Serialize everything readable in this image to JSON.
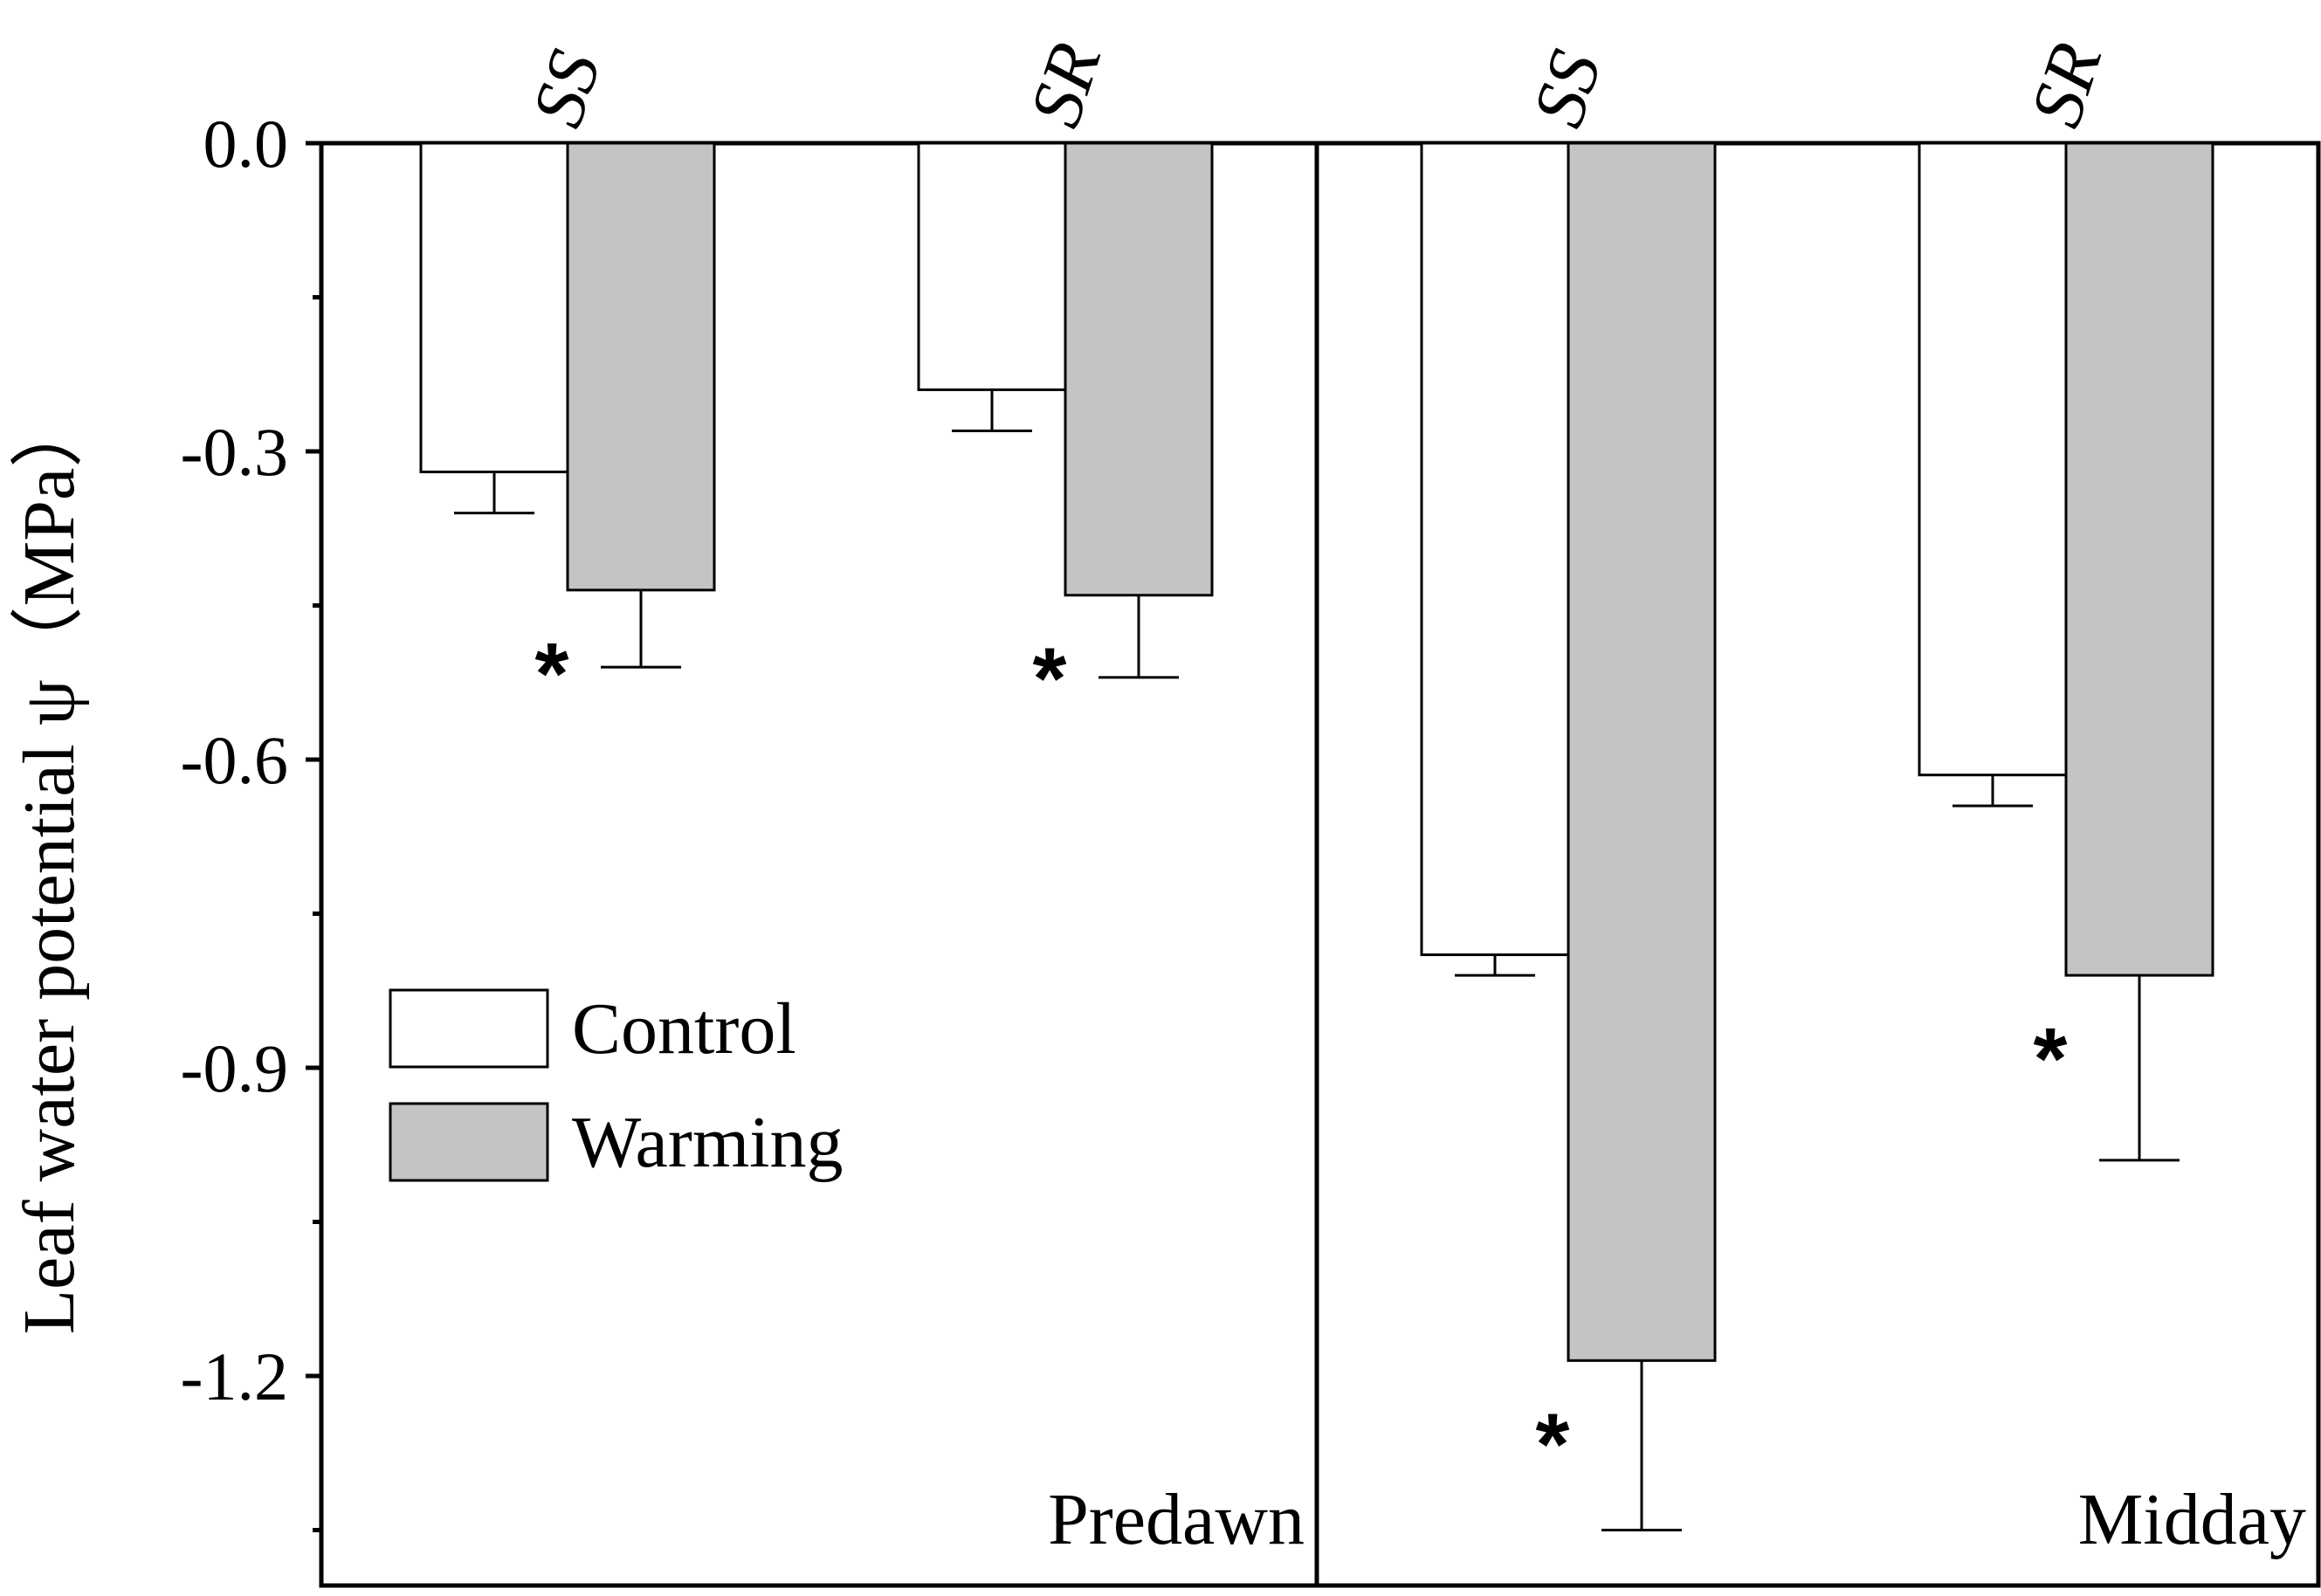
{
  "chart_data": {
    "type": "bar",
    "ylabel": "Leaf water potential ψ（MPa）",
    "ylim": [
      -1.36,
      0.0
    ],
    "yticks": [
      {
        "value": 0.0,
        "label": "0.0"
      },
      {
        "value": -0.3,
        "label": "-0.3"
      },
      {
        "value": -0.6,
        "label": "-0.6"
      },
      {
        "value": -0.9,
        "label": "-0.9"
      },
      {
        "value": -1.2,
        "label": "-1.2"
      }
    ],
    "yminor": [
      -0.15,
      -0.45,
      -0.75,
      -1.05,
      -1.35
    ],
    "legend": {
      "placement": "left-middle",
      "entries": [
        {
          "name": "Control",
          "color": "#ffffff"
        },
        {
          "name": "Warming",
          "color": "#c4c4c4"
        }
      ]
    },
    "panels": [
      {
        "label": "Predawn",
        "groups": [
          {
            "label": "SS",
            "control": -0.32,
            "control_err": 0.04,
            "warming": -0.435,
            "warming_err": 0.075,
            "sig": "*"
          },
          {
            "label": "SR",
            "control": -0.24,
            "control_err": 0.04,
            "warming": -0.44,
            "warming_err": 0.08,
            "sig": "*"
          }
        ]
      },
      {
        "label": "Midday",
        "groups": [
          {
            "label": "SS",
            "control": -0.79,
            "control_err": 0.02,
            "warming": -1.185,
            "warming_err": 0.165,
            "sig": "*"
          },
          {
            "label": "SR",
            "control": -0.615,
            "control_err": 0.03,
            "warming": -0.81,
            "warming_err": 0.18,
            "sig": "*"
          }
        ]
      }
    ]
  }
}
